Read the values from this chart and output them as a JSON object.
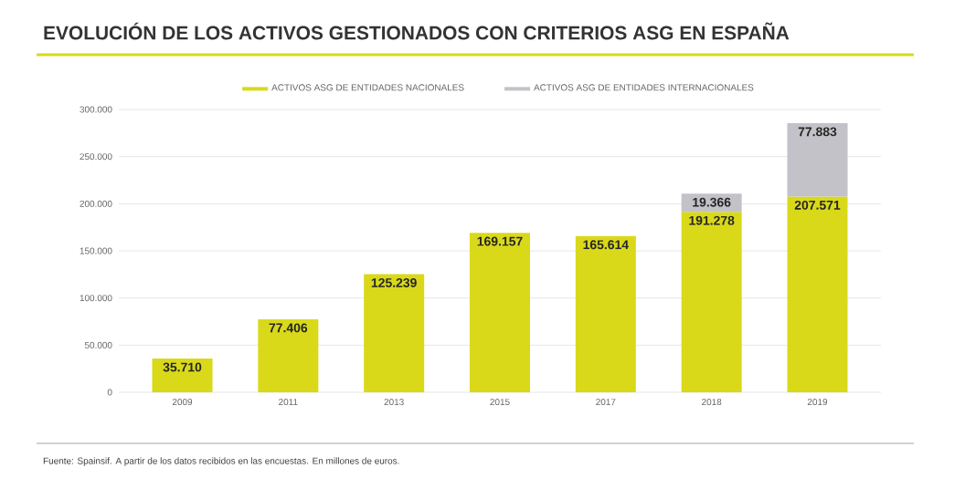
{
  "chart_data": {
    "type": "bar",
    "stacked": true,
    "title": "EVOLUCIÓN DE LOS ACTIVOS GESTIONADOS CON CRITERIOS ASG EN ESPAÑA",
    "categories": [
      "2009",
      "2011",
      "2013",
      "2015",
      "2017",
      "2018",
      "2019"
    ],
    "series": [
      {
        "name": "ACTIVOS ASG DE ENTIDADES NACIONALES",
        "color": "#d9d91a",
        "values": [
          35710,
          77406,
          125239,
          169157,
          165614,
          191278,
          207571
        ],
        "value_labels": [
          "35.710",
          "77.406",
          "125.239",
          "169.157",
          "165.614",
          "191.278",
          "207.571"
        ]
      },
      {
        "name": "ACTIVOS ASG DE ENTIDADES INTERNACIONALES",
        "color": "#c2c2c8",
        "values": [
          null,
          null,
          null,
          null,
          null,
          19366,
          77883
        ],
        "value_labels": [
          null,
          null,
          null,
          null,
          null,
          "19.366",
          "77.883"
        ]
      }
    ],
    "ylim": [
      0,
      300000
    ],
    "yticks": [
      {
        "value": 0,
        "label": "0"
      },
      {
        "value": 50000,
        "label": "50.000"
      },
      {
        "value": 100000,
        "label": "100.000"
      },
      {
        "value": 150000,
        "label": "150.000"
      },
      {
        "value": 200000,
        "label": "200.000"
      },
      {
        "value": 250000,
        "label": "250.000"
      },
      {
        "value": 300000,
        "label": "300.000"
      }
    ],
    "grid": "y",
    "legend": "top",
    "annotations": [
      "Fuente: Spainsif. A partir de los datos recibidos en las encuestas. En millones de euros."
    ]
  }
}
